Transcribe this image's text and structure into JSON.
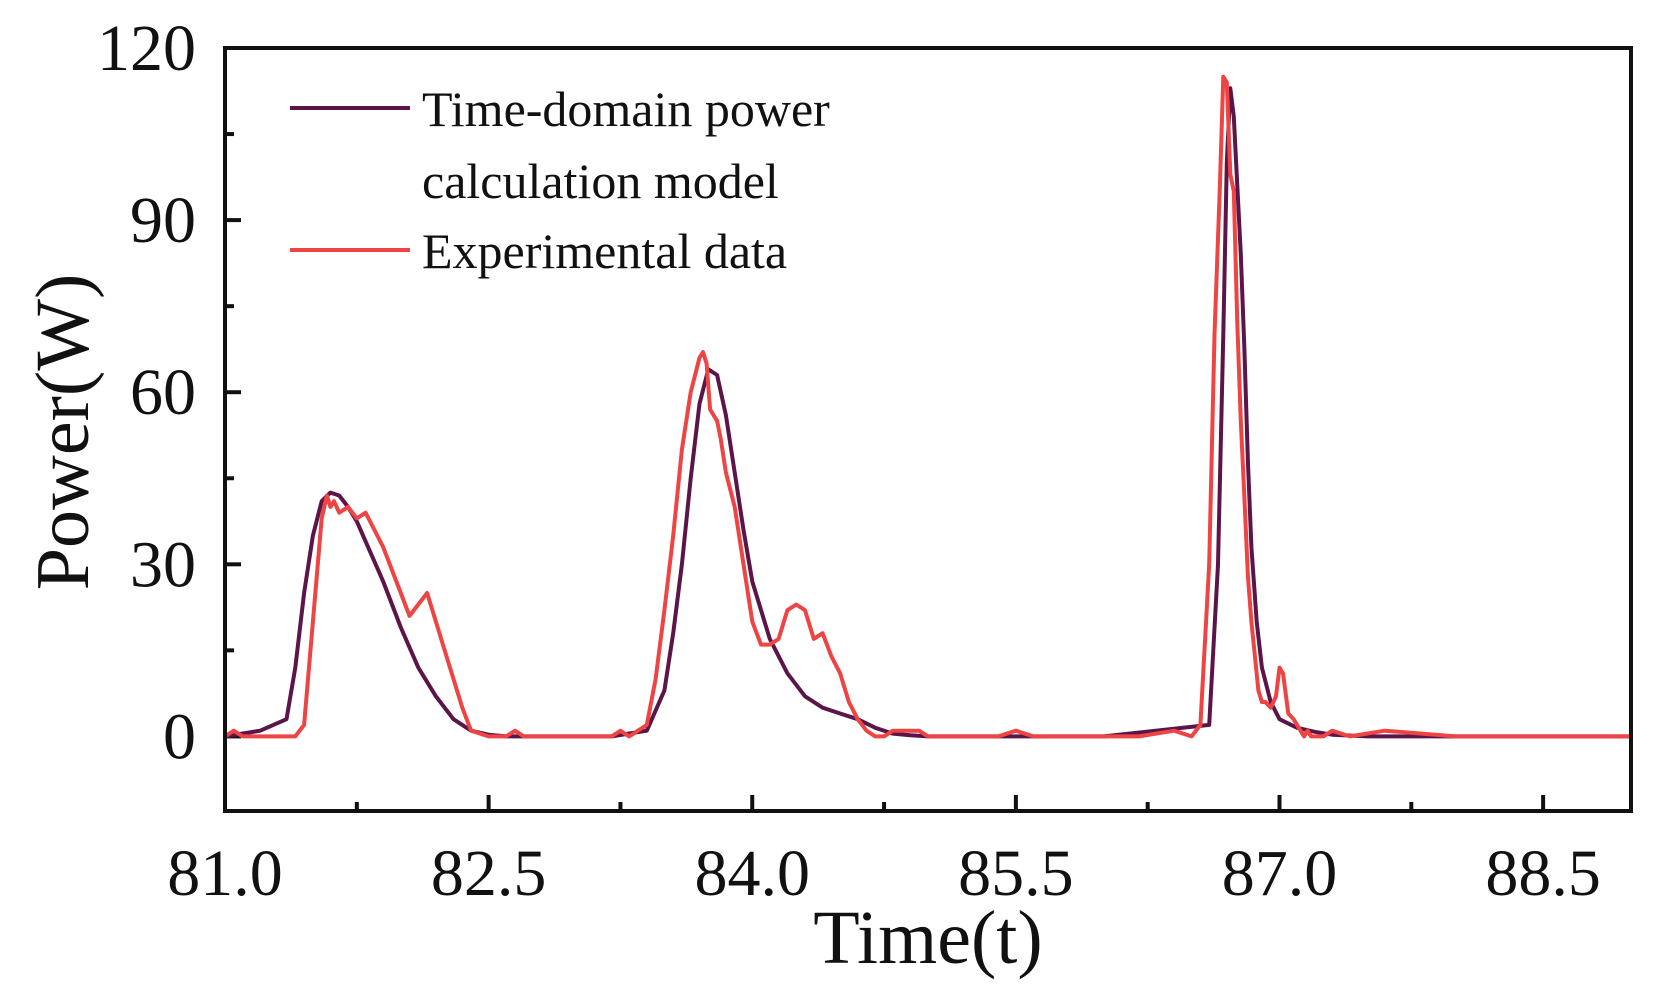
{
  "chart_data": {
    "type": "line",
    "title": "",
    "xlabel": "Time(t)",
    "ylabel": "Power(W)",
    "xlim": [
      81.0,
      89.0
    ],
    "ylim": [
      -13,
      120
    ],
    "xticks": [
      81.0,
      82.5,
      84.0,
      85.5,
      87.0,
      88.5
    ],
    "xtick_labels": [
      "81.0",
      "82.5",
      "84.0",
      "85.5",
      "87.0",
      "88.5"
    ],
    "xminor_ticks": [
      81.75,
      83.25,
      84.75,
      86.25,
      87.75
    ],
    "yticks": [
      0,
      30,
      60,
      90,
      120
    ],
    "ytick_labels": [
      "0",
      "30",
      "60",
      "90",
      "120"
    ],
    "yminor_ticks": [
      15,
      45,
      75,
      105
    ],
    "grid": false,
    "legend_position": "top-left",
    "series": [
      {
        "name": "Time-domain power calculation model",
        "name_lines": [
          "Time-domain power",
          "calculation model"
        ],
        "color": "#5c1548",
        "x": [
          81.0,
          81.2,
          81.35,
          81.4,
          81.45,
          81.5,
          81.55,
          81.6,
          81.65,
          81.7,
          81.75,
          81.8,
          81.9,
          82.0,
          82.1,
          82.2,
          82.3,
          82.4,
          82.5,
          82.6,
          82.7,
          82.8,
          83.0,
          83.2,
          83.4,
          83.5,
          83.55,
          83.6,
          83.65,
          83.7,
          83.75,
          83.8,
          83.85,
          83.9,
          83.95,
          84.0,
          84.1,
          84.2,
          84.3,
          84.4,
          84.5,
          84.6,
          84.7,
          84.8,
          84.9,
          85.0,
          85.1,
          85.2,
          85.4,
          86.0,
          86.6,
          86.65,
          86.68,
          86.7,
          86.72,
          86.74,
          86.76,
          86.78,
          86.8,
          86.82,
          86.84,
          86.87,
          86.9,
          86.95,
          87.0,
          87.1,
          87.2,
          87.3,
          87.5,
          89.0
        ],
        "y": [
          0,
          1,
          3,
          12,
          25,
          35,
          41,
          42.5,
          42,
          40,
          37.5,
          34,
          27,
          19,
          12,
          7,
          3,
          1,
          0.3,
          0,
          0,
          0,
          0,
          0,
          1,
          8,
          18,
          30,
          45,
          58,
          64,
          63,
          56,
          46,
          36,
          27,
          17,
          11,
          7,
          5,
          4,
          3,
          1.5,
          0.5,
          0.2,
          0,
          0,
          0,
          0,
          0,
          2,
          30,
          70,
          100,
          113,
          108,
          96,
          84,
          68,
          48,
          33,
          20,
          12,
          6,
          3,
          1.5,
          0.8,
          0.3,
          0,
          0
        ]
      },
      {
        "name": "Experimental data",
        "color": "#ee4444",
        "x": [
          81.0,
          81.05,
          81.1,
          81.15,
          81.2,
          81.3,
          81.4,
          81.45,
          81.5,
          81.55,
          81.58,
          81.6,
          81.62,
          81.65,
          81.7,
          81.75,
          81.8,
          81.85,
          81.9,
          81.95,
          82.0,
          82.05,
          82.1,
          82.15,
          82.2,
          82.25,
          82.3,
          82.35,
          82.4,
          82.5,
          82.6,
          82.65,
          82.7,
          82.8,
          83.0,
          83.2,
          83.25,
          83.3,
          83.4,
          83.45,
          83.5,
          83.55,
          83.6,
          83.65,
          83.7,
          83.72,
          83.74,
          83.76,
          83.8,
          83.82,
          83.85,
          83.9,
          83.95,
          84.0,
          84.05,
          84.1,
          84.15,
          84.2,
          84.25,
          84.3,
          84.35,
          84.4,
          84.45,
          84.5,
          84.55,
          84.6,
          84.65,
          84.7,
          84.75,
          84.8,
          84.85,
          84.9,
          84.95,
          85.0,
          85.1,
          85.2,
          85.3,
          85.4,
          85.5,
          85.6,
          85.7,
          85.8,
          86.0,
          86.2,
          86.4,
          86.5,
          86.55,
          86.6,
          86.63,
          86.66,
          86.68,
          86.7,
          86.72,
          86.74,
          86.76,
          86.78,
          86.8,
          86.82,
          86.84,
          86.86,
          86.88,
          86.9,
          86.92,
          86.95,
          86.98,
          87.0,
          87.02,
          87.05,
          87.08,
          87.1,
          87.12,
          87.14,
          87.16,
          87.18,
          87.2,
          87.25,
          87.3,
          87.4,
          87.6,
          88.0,
          88.5,
          89.0
        ],
        "y": [
          0,
          1,
          0,
          0,
          0,
          0,
          0,
          2,
          20,
          38,
          42,
          40,
          41,
          39,
          40,
          38,
          39,
          36,
          33,
          29,
          25,
          21,
          23,
          25,
          20,
          15,
          10,
          5,
          1,
          0,
          0,
          1,
          0,
          0,
          0,
          0,
          1,
          0,
          2,
          10,
          22,
          35,
          50,
          60,
          66,
          67,
          65,
          57,
          55,
          52,
          46,
          40,
          30,
          20,
          16,
          16,
          17,
          22,
          23,
          22,
          17,
          18,
          14,
          11,
          6,
          3,
          1,
          0,
          0,
          1,
          1,
          1,
          1,
          0,
          0,
          0,
          0,
          0,
          1,
          0,
          0,
          0,
          0,
          0,
          1,
          0,
          2,
          30,
          70,
          95,
          115,
          114,
          98,
          95,
          72,
          55,
          42,
          28,
          20,
          14,
          8,
          6,
          6,
          5,
          7,
          12,
          11,
          4,
          3,
          2,
          1,
          0,
          1,
          0,
          0,
          0,
          1,
          0,
          1,
          0,
          0,
          0
        ]
      }
    ]
  }
}
